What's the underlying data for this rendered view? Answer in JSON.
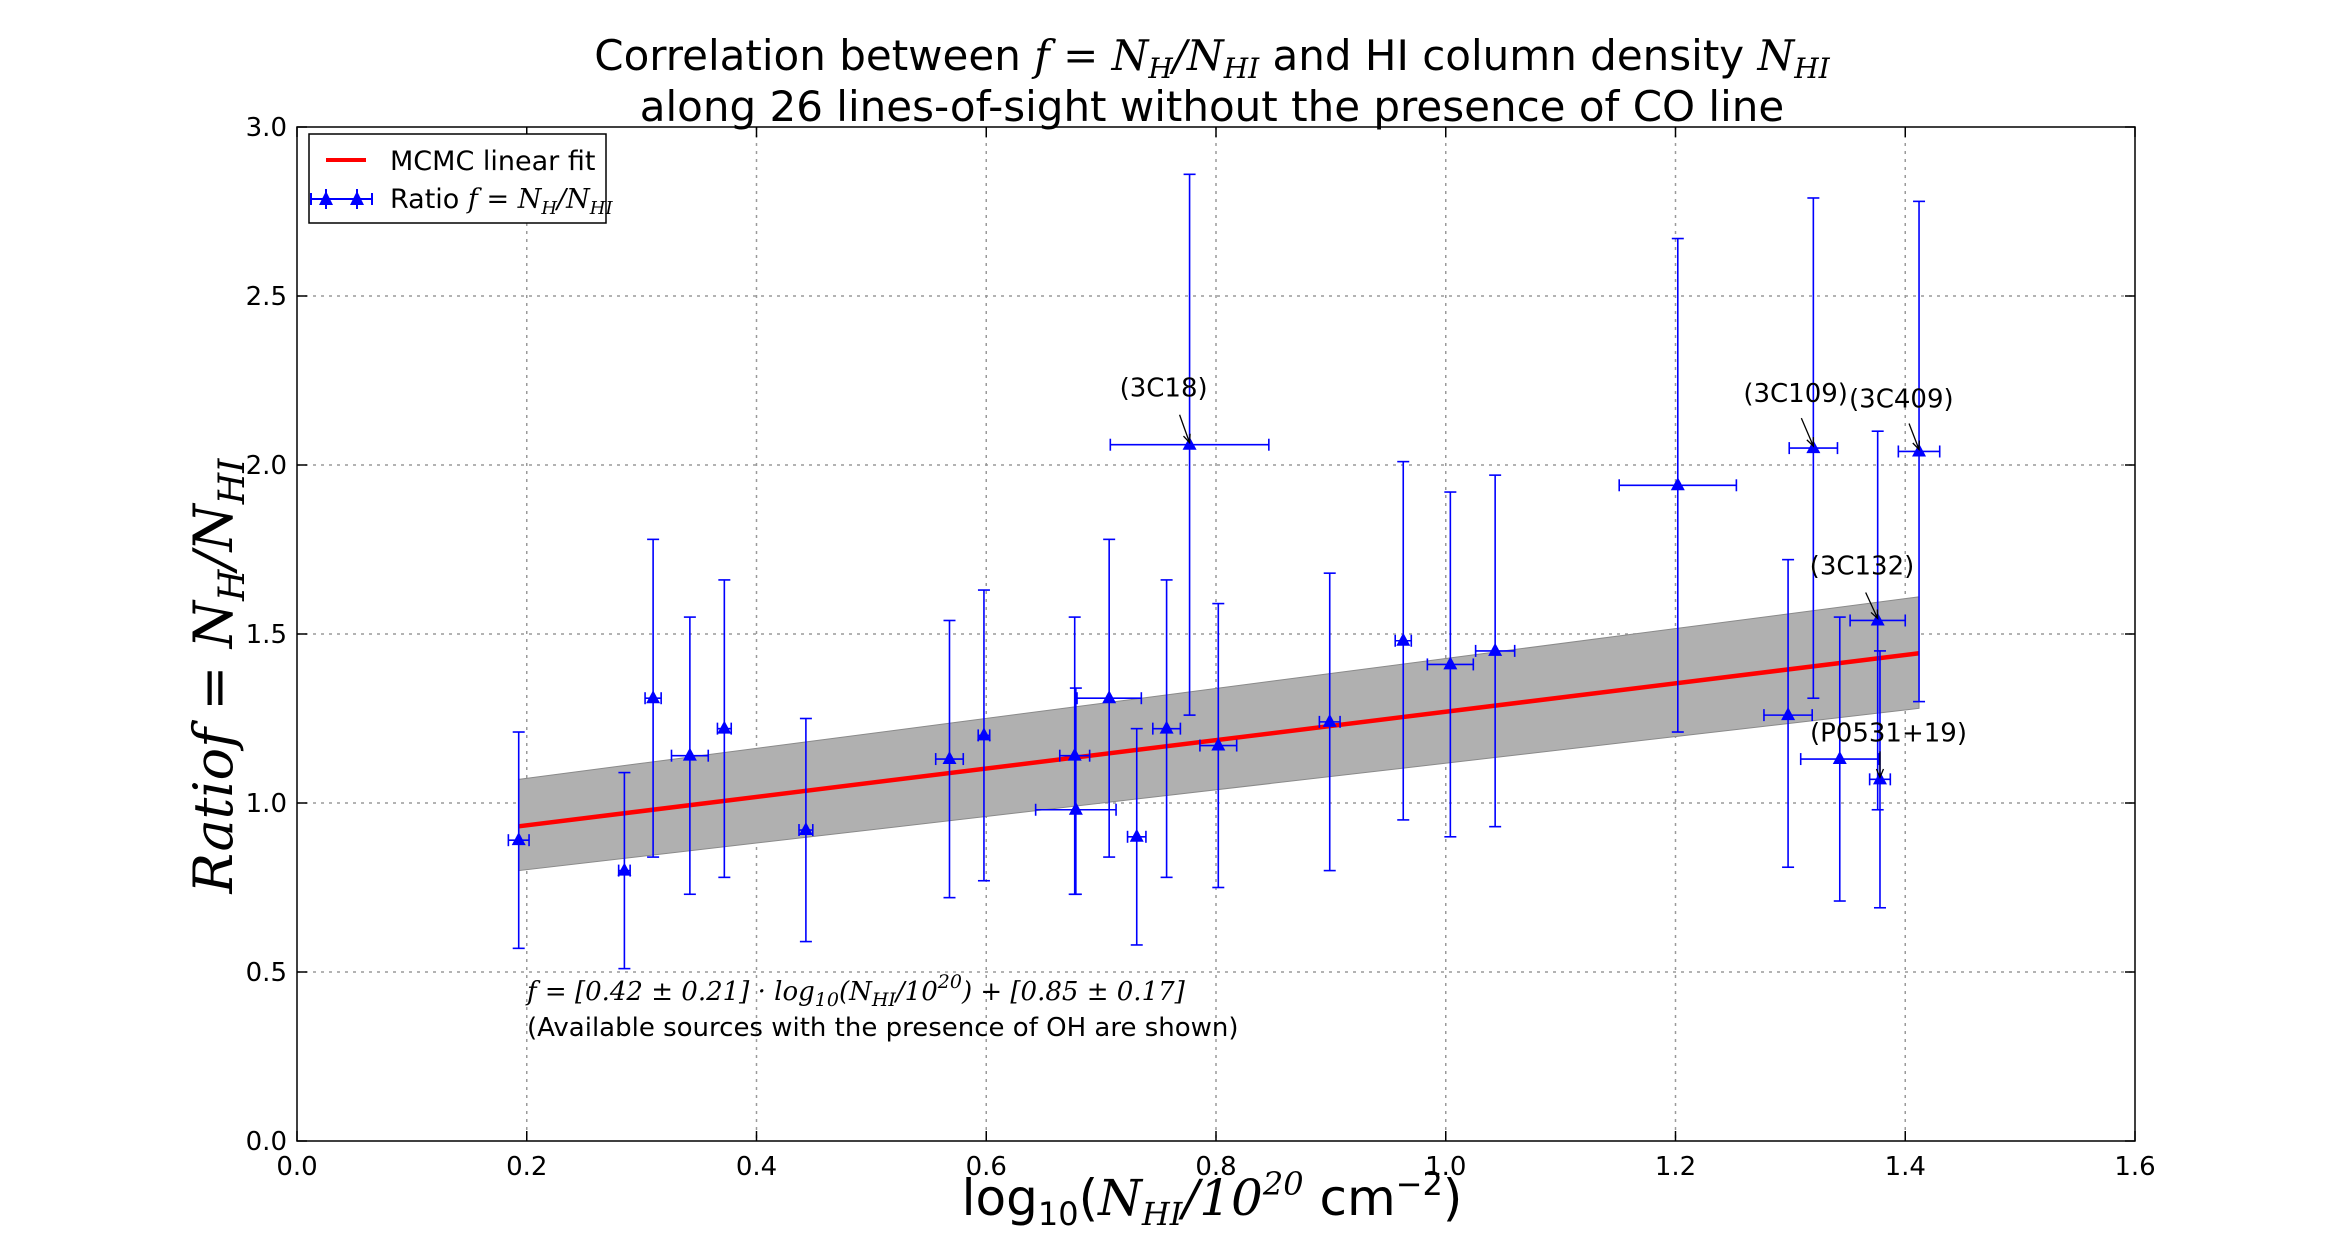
{
  "chart_data": {
    "type": "scatter",
    "title_line1_prefix": "Correlation between ",
    "title_line1_math": "f = N",
    "title_line1_math_sub1": "H",
    "title_line1_math_mid": "/N",
    "title_line1_math_sub2": "HI",
    "title_line1_middle": " and HI column density ",
    "title_line1_math2": "N",
    "title_line1_math2_sub": "HI",
    "title_line2": "along 26 lines-of-sight without the presence of CO line",
    "xlabel_prefix": "log",
    "xlabel_log_sub": "10",
    "xlabel_open": "(",
    "xlabel_n": "N",
    "xlabel_n_sub": "HI",
    "xlabel_slash": "/10",
    "xlabel_exp": "20",
    "xlabel_unit": " cm",
    "xlabel_unit_exp": "−2",
    "xlabel_close": ")",
    "ylabel_word": "Ratio",
    "ylabel_math": "f = N",
    "ylabel_sub1": "H",
    "ylabel_mid": "/N",
    "ylabel_sub2": "HI",
    "xlim": [
      0.0,
      1.6
    ],
    "ylim": [
      0.0,
      3.0
    ],
    "xticks": [
      "0.0",
      "0.2",
      "0.4",
      "0.6",
      "0.8",
      "1.0",
      "1.2",
      "1.4",
      "1.6"
    ],
    "yticks": [
      "0.0",
      "0.5",
      "1.0",
      "1.5",
      "2.0",
      "2.5",
      "3.0"
    ],
    "grid": true,
    "legend_position": "top-left",
    "legend": {
      "fit_label": "MCMC linear fit",
      "ratio_label_prefix": "Ratio ",
      "ratio_label_math": "f = N",
      "ratio_label_sub1": "H",
      "ratio_label_mid": "/N",
      "ratio_label_sub2": "HI"
    },
    "fit": {
      "name": "MCMC linear fit",
      "x_range": [
        0.193,
        1.412
      ],
      "slope": 0.42,
      "intercept": 0.85,
      "band_lower": [
        0.8,
        1.28
      ],
      "band_upper": [
        1.07,
        1.61
      ],
      "color": "#ff0000",
      "band_color": "#b0b0b0"
    },
    "points": [
      {
        "x": 0.193,
        "y": 0.89,
        "xerr": 0.009,
        "yerr_low": 0.32,
        "yerr_high": 0.32
      },
      {
        "x": 0.285,
        "y": 0.8,
        "xerr": 0.005,
        "yerr_low": 0.29,
        "yerr_high": 0.29
      },
      {
        "x": 0.31,
        "y": 1.31,
        "xerr": 0.007,
        "yerr_low": 0.47,
        "yerr_high": 0.47
      },
      {
        "x": 0.342,
        "y": 1.14,
        "xerr": 0.016,
        "yerr_low": 0.41,
        "yerr_high": 0.41
      },
      {
        "x": 0.372,
        "y": 1.22,
        "xerr": 0.006,
        "yerr_low": 0.44,
        "yerr_high": 0.44
      },
      {
        "x": 0.443,
        "y": 0.92,
        "xerr": 0.006,
        "yerr_low": 0.33,
        "yerr_high": 0.33
      },
      {
        "x": 0.568,
        "y": 1.13,
        "xerr": 0.012,
        "yerr_low": 0.41,
        "yerr_high": 0.41
      },
      {
        "x": 0.598,
        "y": 1.2,
        "xerr": 0.005,
        "yerr_low": 0.43,
        "yerr_high": 0.43
      },
      {
        "x": 0.677,
        "y": 1.14,
        "xerr": 0.013,
        "yerr_low": 0.41,
        "yerr_high": 0.41
      },
      {
        "x": 0.678,
        "y": 0.98,
        "xerr": 0.035,
        "yerr_low": 0.25,
        "yerr_high": 0.36
      },
      {
        "x": 0.707,
        "y": 1.31,
        "xerr": 0.028,
        "yerr_low": 0.47,
        "yerr_high": 0.47
      },
      {
        "x": 0.731,
        "y": 0.9,
        "xerr": 0.008,
        "yerr_low": 0.32,
        "yerr_high": 0.32
      },
      {
        "x": 0.757,
        "y": 1.22,
        "xerr": 0.012,
        "yerr_low": 0.44,
        "yerr_high": 0.44
      },
      {
        "x": 0.777,
        "y": 2.06,
        "xerr": 0.069,
        "yerr_low": 0.8,
        "yerr_high": 0.8
      },
      {
        "x": 0.802,
        "y": 1.17,
        "xerr": 0.016,
        "yerr_low": 0.42,
        "yerr_high": 0.42
      },
      {
        "x": 0.899,
        "y": 1.24,
        "xerr": 0.009,
        "yerr_low": 0.44,
        "yerr_high": 0.44
      },
      {
        "x": 0.963,
        "y": 1.48,
        "xerr": 0.007,
        "yerr_low": 0.53,
        "yerr_high": 0.53
      },
      {
        "x": 1.004,
        "y": 1.41,
        "xerr": 0.02,
        "yerr_low": 0.51,
        "yerr_high": 0.51
      },
      {
        "x": 1.043,
        "y": 1.45,
        "xerr": 0.017,
        "yerr_low": 0.52,
        "yerr_high": 0.52
      },
      {
        "x": 1.202,
        "y": 1.94,
        "xerr": 0.051,
        "yerr_low": 0.73,
        "yerr_high": 0.73
      },
      {
        "x": 1.298,
        "y": 1.26,
        "xerr": 0.021,
        "yerr_low": 0.45,
        "yerr_high": 0.46
      },
      {
        "x": 1.32,
        "y": 2.05,
        "xerr": 0.021,
        "yerr_low": 0.74,
        "yerr_high": 0.74
      },
      {
        "x": 1.343,
        "y": 1.13,
        "xerr": 0.034,
        "yerr_low": 0.42,
        "yerr_high": 0.42
      },
      {
        "x": 1.376,
        "y": 1.54,
        "xerr": 0.024,
        "yerr_low": 0.56,
        "yerr_high": 0.56
      },
      {
        "x": 1.378,
        "y": 1.07,
        "xerr": 0.009,
        "yerr_low": 0.38,
        "yerr_high": 0.38
      },
      {
        "x": 1.412,
        "y": 2.04,
        "xerr": 0.018,
        "yerr_low": 0.74,
        "yerr_high": 0.74
      }
    ],
    "annotations": [
      {
        "text": "(3C18)",
        "x": 0.777,
        "y": 2.06
      },
      {
        "text": "(3C109)",
        "x": 1.32,
        "y": 2.05
      },
      {
        "text": "(3C409)",
        "x": 1.412,
        "y": 2.04
      },
      {
        "text": "(3C132)",
        "x": 1.376,
        "y": 1.54
      },
      {
        "text": "(P0531+19)",
        "x": 1.378,
        "y": 1.07
      }
    ],
    "fit_equation": {
      "f": "f",
      "eq": " = [0.42 ± 0.21] · ",
      "log": "log",
      "log_sub": "10",
      "paren": "(N",
      "n_sub": "HI",
      "slash": "/10",
      "exp": "20",
      "tail": ") + [0.85 ± 0.17]"
    },
    "note": "(Available sources with the presence of OH are shown)",
    "marker_color": "#0000ff"
  }
}
